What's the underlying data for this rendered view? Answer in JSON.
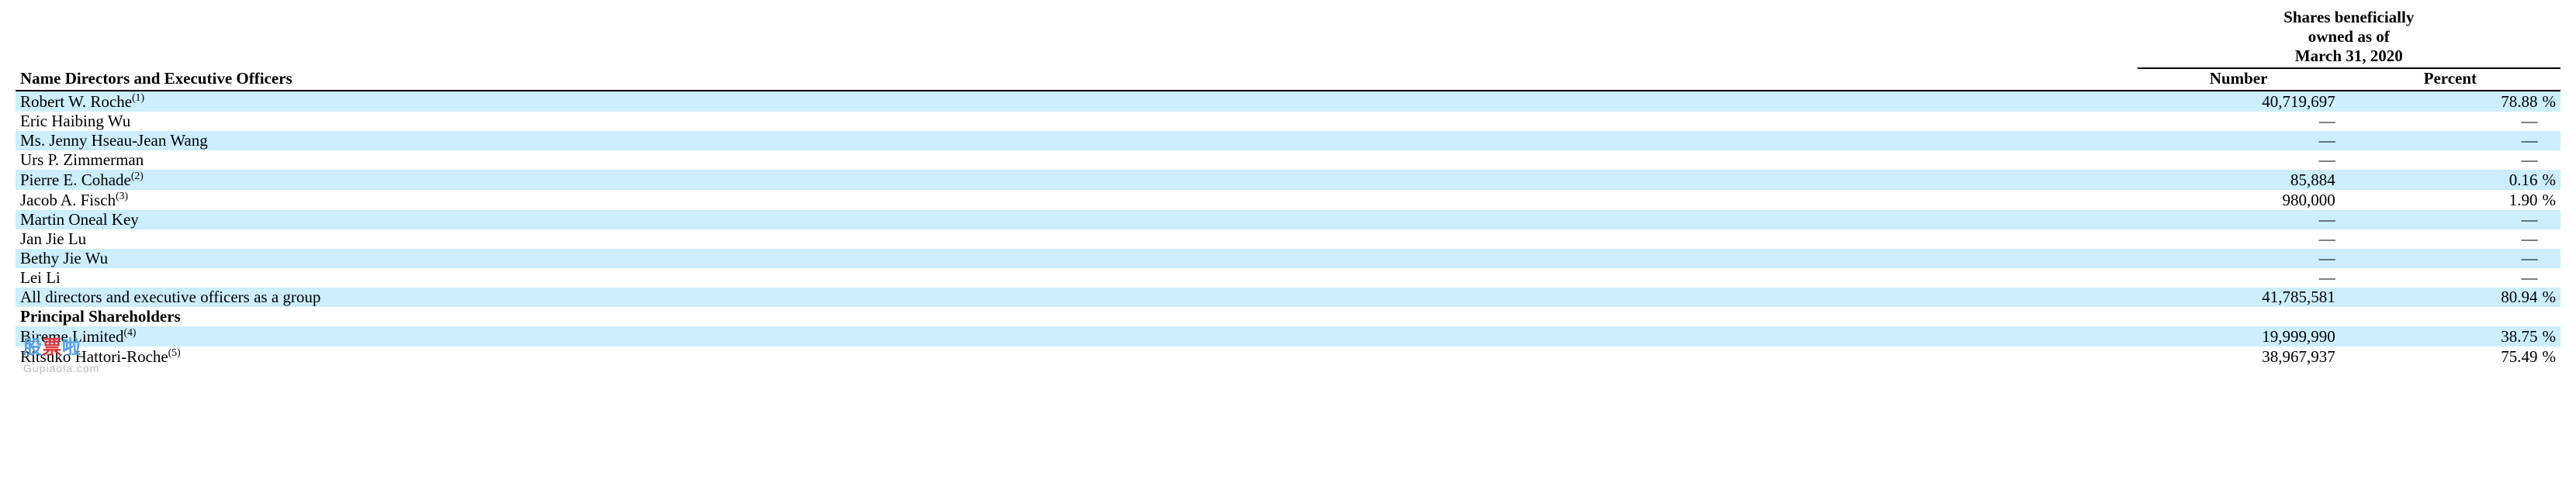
{
  "header": {
    "group_line1": "Shares beneficially",
    "group_line2": "owned as of",
    "group_line3": "March 31, 2020",
    "name_col": "Name Directors and Executive Officers",
    "number_col": "Number",
    "percent_col": "Percent"
  },
  "rows": [
    {
      "stripe": true,
      "name": "Robert W. Roche",
      "sup": "(1)",
      "number": "40,719,697",
      "percent": "78.88",
      "pct_suffix": "%"
    },
    {
      "stripe": false,
      "name": "Eric Haibing Wu",
      "sup": "",
      "number": "—",
      "percent": "—",
      "pct_suffix": ""
    },
    {
      "stripe": true,
      "name": "Ms. Jenny Hseau-Jean Wang",
      "sup": "",
      "number": "—",
      "percent": "—",
      "pct_suffix": ""
    },
    {
      "stripe": false,
      "name": "Urs P. Zimmerman",
      "sup": "",
      "number": "—",
      "percent": "—",
      "pct_suffix": ""
    },
    {
      "stripe": true,
      "name": "Pierre E. Cohade",
      "sup": "(2)",
      "number": "85,884",
      "percent": "0.16",
      "pct_suffix": "%"
    },
    {
      "stripe": false,
      "name": "Jacob A. Fisch",
      "sup": "(3)",
      "number": "980,000",
      "percent": "1.90",
      "pct_suffix": "%"
    },
    {
      "stripe": true,
      "name": "Martin Oneal Key",
      "sup": "",
      "number": "—",
      "percent": "—",
      "pct_suffix": ""
    },
    {
      "stripe": false,
      "name": "Jan Jie Lu",
      "sup": "",
      "number": "—",
      "percent": "—",
      "pct_suffix": ""
    },
    {
      "stripe": true,
      "name": "Bethy Jie Wu",
      "sup": "",
      "number": "—",
      "percent": "—",
      "pct_suffix": ""
    },
    {
      "stripe": false,
      "name": "Lei Li",
      "sup": "",
      "number": "—",
      "percent": "—",
      "pct_suffix": ""
    },
    {
      "stripe": true,
      "name": "All directors and executive officers as a group",
      "sup": "",
      "number": "41,785,581",
      "percent": "80.94",
      "pct_suffix": "%"
    }
  ],
  "section2_title": "Principal Shareholders",
  "rows2": [
    {
      "stripe": true,
      "name": "Bireme Limited",
      "sup": "(4)",
      "number": "19,999,990",
      "percent": "38.75",
      "pct_suffix": "%"
    },
    {
      "stripe": false,
      "name": "Ritsuko Hattori-Roche",
      "sup": "(5)",
      "number": "38,967,937",
      "percent": "75.49",
      "pct_suffix": "%"
    }
  ],
  "colwidths": {
    "name_pct": 84,
    "number_pct": 8,
    "percent_pct": 8
  },
  "colors": {
    "stripe": "#cceeff",
    "text": "#000000",
    "bg": "#ffffff"
  },
  "watermark": {
    "main1": "股",
    "main2": "票",
    "main3": "啦",
    "sub": "Gupiaola.com"
  }
}
